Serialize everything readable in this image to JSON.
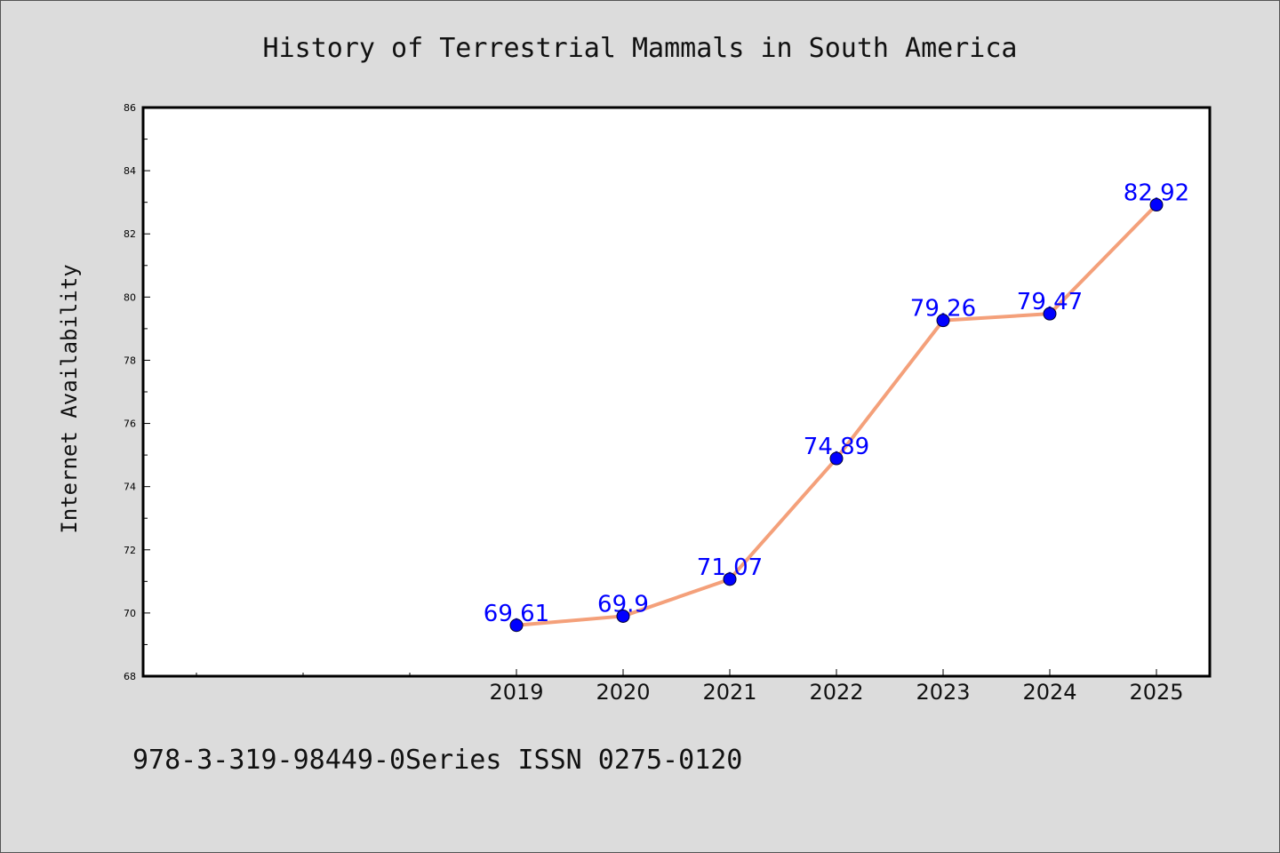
{
  "chart_data": {
    "type": "line",
    "title": "History of Terrestrial Mammals in South America",
    "xlabel": "",
    "ylabel": "Internet Availability",
    "categories": [
      "2019",
      "2020",
      "2021",
      "2022",
      "2023",
      "2024",
      "2025"
    ],
    "series": [
      {
        "values": [
          69.61,
          69.9,
          71.07,
          74.89,
          79.26,
          79.47,
          82.92
        ],
        "labels": [
          "69.61",
          "69.9",
          "71.07",
          "74.89",
          "79.26",
          "79.47",
          "82.92"
        ]
      }
    ],
    "ylim": [
      68,
      86
    ],
    "yticks": [
      "68",
      "70",
      "72",
      "74",
      "76",
      "78",
      "80",
      "82",
      "84",
      "86"
    ],
    "grid": false,
    "line_color": "#f4a07a",
    "marker_color": "#0000ff",
    "label_color": "#0000ff"
  },
  "footer": {
    "text": "978-3-319-98449-0Series ISSN 0275-0120"
  }
}
